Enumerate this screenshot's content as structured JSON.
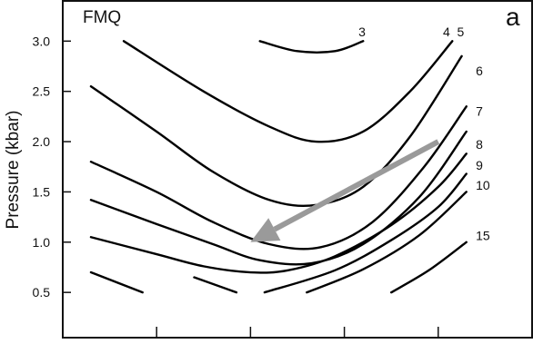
{
  "chart_data": {
    "type": "line",
    "title": "",
    "panel_label": "a",
    "annotation": "FMQ",
    "ylabel": "Pressure (kbar)",
    "xlabel": "",
    "ylim": [
      0.05,
      3.4
    ],
    "yticks": [
      {
        "value": 0.5,
        "label": "0.5"
      },
      {
        "value": 1.0,
        "label": "1.0"
      },
      {
        "value": 1.5,
        "label": "1.5"
      },
      {
        "value": 2.0,
        "label": "2.0"
      },
      {
        "value": 2.5,
        "label": "2.5"
      },
      {
        "value": 3.0,
        "label": "3.0"
      }
    ],
    "xlim": [
      0,
      5
    ],
    "xticks": [
      1,
      2,
      3,
      4
    ],
    "xtick_labels_visible": false,
    "grid": false,
    "colors": {
      "contour": "#000000",
      "arrow": "#9a9a9a",
      "frame": "#111111"
    },
    "series": [
      {
        "name": "3",
        "x": [
          2.1,
          2.5,
          2.9,
          3.2
        ],
        "y": [
          3.0,
          2.9,
          2.9,
          3.0
        ]
      },
      {
        "name": "4",
        "x": [
          0.65,
          1.5,
          2.2,
          2.7,
          3.2,
          3.7,
          4.15
        ],
        "y": [
          3.0,
          2.5,
          2.15,
          2.0,
          2.1,
          2.5,
          3.0
        ]
      },
      {
        "name": "5",
        "x": [
          0.3,
          1.0,
          1.6,
          2.2,
          2.7,
          3.2,
          3.7,
          4.25
        ],
        "y": [
          2.55,
          2.1,
          1.7,
          1.42,
          1.37,
          1.55,
          2.05,
          2.85
        ]
      },
      {
        "name": "6",
        "x": [
          0.3,
          1.0,
          1.6,
          2.2,
          2.75,
          3.3,
          3.85,
          4.3
        ],
        "y": [
          1.8,
          1.5,
          1.2,
          0.98,
          0.95,
          1.2,
          1.75,
          2.35
        ]
      },
      {
        "name": "7",
        "x": [
          0.3,
          1.0,
          1.6,
          2.1,
          2.65,
          3.2,
          3.8,
          4.3
        ],
        "y": [
          1.42,
          1.18,
          0.98,
          0.82,
          0.79,
          0.98,
          1.45,
          2.1
        ]
      },
      {
        "name": "8",
        "x": [
          0.3,
          1.0,
          1.5,
          2.0,
          2.4,
          2.9,
          3.5,
          4.0,
          4.3
        ],
        "y": [
          1.05,
          0.88,
          0.76,
          0.7,
          0.72,
          0.86,
          1.17,
          1.55,
          1.88
        ]
      },
      {
        "name": "9",
        "x": [
          0.3,
          0.85
        ],
        "y": [
          0.7,
          0.5
        ]
      },
      {
        "name": "9",
        "x": [
          1.4,
          1.85
        ],
        "y": [
          0.65,
          0.5
        ]
      },
      {
        "name": "9",
        "x": [
          2.15,
          2.9,
          3.5,
          4.0,
          4.3
        ],
        "y": [
          0.5,
          0.72,
          1.02,
          1.35,
          1.68
        ]
      },
      {
        "name": "10",
        "x": [
          2.6,
          3.2,
          3.8,
          4.3
        ],
        "y": [
          0.5,
          0.73,
          1.07,
          1.5
        ]
      },
      {
        "name": "15",
        "x": [
          3.5,
          3.9,
          4.3
        ],
        "y": [
          0.5,
          0.72,
          1.0
        ]
      }
    ],
    "contour_labels": [
      {
        "text": "3",
        "x": 3.15,
        "y": 3.05
      },
      {
        "text": "4",
        "x": 4.05,
        "y": 3.05
      },
      {
        "text": "5",
        "x": 4.2,
        "y": 3.05
      },
      {
        "text": "6",
        "x": 4.4,
        "y": 2.66
      },
      {
        "text": "7",
        "x": 4.4,
        "y": 2.26
      },
      {
        "text": "8",
        "x": 4.4,
        "y": 1.93
      },
      {
        "text": "9",
        "x": 4.4,
        "y": 1.72
      },
      {
        "text": "10",
        "x": 4.4,
        "y": 1.52
      },
      {
        "text": "15",
        "x": 4.4,
        "y": 1.02
      }
    ],
    "arrow": {
      "from": {
        "x": 4.0,
        "y": 2.0
      },
      "to": {
        "x": 2.0,
        "y": 1.0
      }
    }
  }
}
